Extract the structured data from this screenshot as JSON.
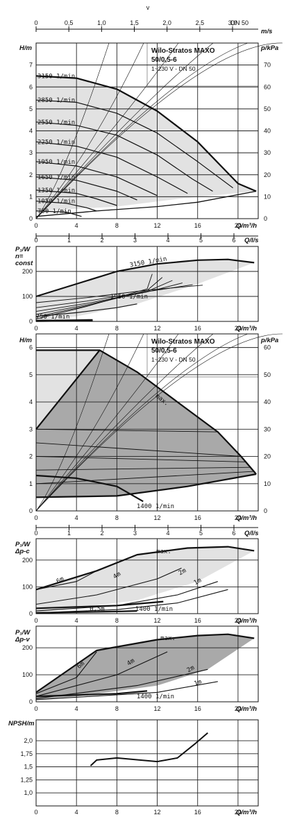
{
  "title": {
    "line1": "Wilo-Stratos MAXO",
    "line2": "50/0,5-6",
    "line3": "1~230 V - DN 50"
  },
  "top_axis": {
    "symbol": "v",
    "unit": "m/s",
    "ticks": [
      "0",
      "0,5",
      "1,0",
      "1,5",
      "2,0",
      "2,5",
      "3,0"
    ],
    "dn": "DN 50"
  },
  "labels": {
    "h": "H/m",
    "p": "p/kPa",
    "q": "Q/m³/h",
    "qls": "Q/l/s",
    "p1_n": [
      "P₁/W",
      "n=",
      "const"
    ],
    "p1_dpc": [
      "P₁/W",
      "Δp-c"
    ],
    "p1_dpv": [
      "P₁/W",
      "Δp-v"
    ],
    "npsh": "NPSH/m",
    "max": "max.",
    "n1400": "1400 1/min",
    "n1950": "1950 1/min",
    "n3150": "3150 1/min",
    "n750": "750 1/min",
    "h05": "0,5m",
    "h1": "1m",
    "h2": "2m",
    "h4": "4m",
    "h6": "6m"
  },
  "chart_data": [
    {
      "type": "line",
      "name": "curve-n-const",
      "xlabel": "Q/m³/h",
      "ylabel": "H/m",
      "y2label": "p/kPa",
      "xlim": [
        0,
        22
      ],
      "ylim": [
        0,
        7.5
      ],
      "y2lim": [
        0,
        75
      ],
      "x_ticks": [
        0,
        4,
        8,
        12,
        16,
        20
      ],
      "y_ticks": [
        0,
        1,
        2,
        3,
        4,
        5,
        6,
        7
      ],
      "y2_ticks": [
        0,
        10,
        20,
        30,
        40,
        50,
        60,
        70
      ],
      "x2label": "Q/l/s",
      "x2_ticks": [
        0,
        1,
        2,
        3,
        4,
        5,
        6
      ],
      "series": [
        {
          "name": "3150 1/min",
          "points": [
            [
              0,
              6.5
            ],
            [
              4,
              6.4
            ],
            [
              8,
              5.9
            ],
            [
              12,
              4.9
            ],
            [
              16,
              3.5
            ],
            [
              20,
              1.6
            ],
            [
              21.8,
              1.25
            ]
          ]
        },
        {
          "name": "2850 1/min",
          "points": [
            [
              0,
              5.4
            ],
            [
              4,
              5.3
            ],
            [
              8,
              4.8
            ],
            [
              12,
              3.9
            ],
            [
              16,
              2.6
            ],
            [
              19.5,
              1.4
            ]
          ]
        },
        {
          "name": "2550 1/min",
          "points": [
            [
              0,
              4.4
            ],
            [
              4,
              4.25
            ],
            [
              8,
              3.8
            ],
            [
              12,
              2.9
            ],
            [
              15.5,
              1.8
            ],
            [
              17.5,
              1.25
            ]
          ]
        },
        {
          "name": "2250 1/min",
          "points": [
            [
              0,
              3.5
            ],
            [
              4,
              3.3
            ],
            [
              8,
              2.8
            ],
            [
              12,
              1.9
            ],
            [
              15,
              1.15
            ]
          ]
        },
        {
          "name": "1950 1/min",
          "points": [
            [
              0,
              2.6
            ],
            [
              4,
              2.4
            ],
            [
              8,
              1.9
            ],
            [
              12,
              1.05
            ]
          ]
        },
        {
          "name": "1650 1/min",
          "points": [
            [
              0,
              1.9
            ],
            [
              4,
              1.75
            ],
            [
              8,
              1.25
            ],
            [
              10,
              0.85
            ]
          ]
        },
        {
          "name": "1350 1/min",
          "points": [
            [
              0,
              1.3
            ],
            [
              4,
              1.15
            ],
            [
              6,
              0.9
            ],
            [
              8,
              0.6
            ]
          ]
        },
        {
          "name": "1050 1/min",
          "points": [
            [
              0,
              0.8
            ],
            [
              3,
              0.7
            ],
            [
              5,
              0.5
            ],
            [
              6,
              0.35
            ]
          ]
        },
        {
          "name": "750 1/min",
          "points": [
            [
              0,
              0.35
            ],
            [
              3,
              0.3
            ],
            [
              4.5,
              0.1
            ]
          ]
        }
      ]
    },
    {
      "type": "line",
      "name": "power-n-const",
      "xlabel": "Q/m³/h",
      "ylabel": "P₁/W",
      "xlim": [
        0,
        22
      ],
      "ylim": [
        0,
        280
      ],
      "x_ticks": [
        0,
        4,
        8,
        12,
        16,
        20
      ],
      "y_ticks": [
        0,
        100,
        200
      ],
      "series": [
        {
          "name": "3150 1/min",
          "points": [
            [
              0,
              100
            ],
            [
              4,
              150
            ],
            [
              8,
              200
            ],
            [
              12,
              230
            ],
            [
              16,
              245
            ],
            [
              19,
              248
            ],
            [
              21.6,
              235
            ]
          ]
        },
        {
          "name": "1950 1/min",
          "points": [
            [
              0,
              20
            ],
            [
              4,
              35
            ],
            [
              8,
              55
            ],
            [
              10,
              70
            ]
          ]
        },
        {
          "name": "750 1/min",
          "points": [
            [
              0,
              2
            ],
            [
              4,
              4
            ],
            [
              5.6,
              5
            ]
          ]
        }
      ]
    },
    {
      "type": "line",
      "name": "curve-dp-c",
      "xlabel": "Q/m³/h",
      "ylabel": "H/m",
      "y2label": "p/kPa",
      "xlim": [
        0,
        22
      ],
      "ylim": [
        0,
        6.5
      ],
      "y2lim": [
        0,
        65
      ],
      "x_ticks": [
        0,
        4,
        8,
        12,
        16,
        20
      ],
      "y_ticks": [
        0,
        1,
        2,
        3,
        4,
        5,
        6
      ],
      "y2_ticks": [
        0,
        10,
        20,
        30,
        40,
        50,
        60
      ],
      "series": [
        {
          "name": "max.",
          "points": [
            [
              0,
              5.9
            ],
            [
              6.3,
              5.9
            ],
            [
              10,
              5.1
            ],
            [
              14,
              4.0
            ],
            [
              18,
              2.9
            ],
            [
              20.3,
              2.0
            ],
            [
              21.8,
              1.35
            ]
          ]
        },
        {
          "name": "1400 1/min",
          "points": [
            [
              0,
              1.3
            ],
            [
              4,
              1.2
            ],
            [
              8,
              0.9
            ],
            [
              10.6,
              0.35
            ]
          ]
        }
      ]
    },
    {
      "type": "line",
      "name": "power-dp-c",
      "xlabel": "Q/m³/h",
      "ylabel": "P₁/W",
      "xlim": [
        0,
        22
      ],
      "ylim": [
        0,
        280
      ],
      "x_ticks": [
        0,
        4,
        8,
        12,
        16,
        20
      ],
      "y_ticks": [
        0,
        100,
        200
      ],
      "series": [
        {
          "name": "max.",
          "points": [
            [
              0,
              90
            ],
            [
              6,
              160
            ],
            [
              10,
              220
            ],
            [
              15,
              245
            ],
            [
              19,
              250
            ],
            [
              21.6,
              235
            ]
          ]
        },
        {
          "name": "6m",
          "points": [
            [
              0,
              90
            ],
            [
              4,
              120
            ],
            [
              6,
              160
            ]
          ]
        },
        {
          "name": "4m",
          "points": [
            [
              0,
              35
            ],
            [
              6,
              70
            ],
            [
              12,
              130
            ],
            [
              14.4,
              170
            ]
          ]
        },
        {
          "name": "2m",
          "points": [
            [
              0,
              10
            ],
            [
              8,
              30
            ],
            [
              14,
              70
            ],
            [
              18,
              120
            ]
          ]
        },
        {
          "name": "1m",
          "points": [
            [
              0,
              3
            ],
            [
              8,
              15
            ],
            [
              14,
              40
            ],
            [
              19,
              90
            ]
          ]
        },
        {
          "name": "0,5m",
          "points": [
            [
              0,
              3
            ],
            [
              8,
              8
            ],
            [
              10,
              10
            ]
          ]
        },
        {
          "name": "1400 1/min",
          "points": [
            [
              0,
              20
            ],
            [
              8,
              30
            ],
            [
              12.6,
              45
            ]
          ]
        }
      ]
    },
    {
      "type": "line",
      "name": "power-dp-v",
      "xlabel": "Q/m³/h",
      "ylabel": "P₁/W",
      "xlim": [
        0,
        22
      ],
      "ylim": [
        0,
        280
      ],
      "x_ticks": [
        0,
        4,
        8,
        12,
        16,
        20
      ],
      "y_ticks": [
        0,
        100,
        200
      ],
      "series": [
        {
          "name": "max.",
          "points": [
            [
              0,
              35
            ],
            [
              6,
              190
            ],
            [
              12,
              230
            ],
            [
              16,
              245
            ],
            [
              19,
              250
            ],
            [
              21.6,
              235
            ]
          ]
        },
        {
          "name": "6m",
          "points": [
            [
              0,
              30
            ],
            [
              4,
              90
            ],
            [
              6,
              185
            ]
          ]
        },
        {
          "name": "4m",
          "points": [
            [
              0,
              20
            ],
            [
              8,
              100
            ],
            [
              13,
              185
            ]
          ]
        },
        {
          "name": "2m",
          "points": [
            [
              0,
              12
            ],
            [
              10,
              60
            ],
            [
              17,
              120
            ]
          ]
        },
        {
          "name": "1m",
          "points": [
            [
              0,
              8
            ],
            [
              12,
              35
            ],
            [
              18,
              75
            ]
          ]
        },
        {
          "name": "1400 1/min",
          "points": [
            [
              0,
              20
            ],
            [
              8,
              30
            ],
            [
              11,
              40
            ]
          ]
        }
      ]
    },
    {
      "type": "line",
      "name": "npsh",
      "xlabel": "Q/m³/h",
      "ylabel": "NPSH/m",
      "xlim": [
        0,
        22
      ],
      "ylim": [
        0.75,
        2.4
      ],
      "x_ticks": [
        0,
        4,
        8,
        12,
        16,
        20
      ],
      "y_ticks": [
        1.0,
        1.25,
        1.5,
        1.75,
        2.0
      ],
      "y_tick_labels": [
        "1,0",
        "1,25",
        "1,5",
        "1,75",
        "2,0"
      ],
      "series": [
        {
          "name": "NPSH",
          "points": [
            [
              5.4,
              1.52
            ],
            [
              6,
              1.63
            ],
            [
              8,
              1.67
            ],
            [
              12,
              1.6
            ],
            [
              14,
              1.67
            ],
            [
              15.8,
              1.95
            ],
            [
              17,
              2.15
            ]
          ]
        }
      ]
    }
  ]
}
